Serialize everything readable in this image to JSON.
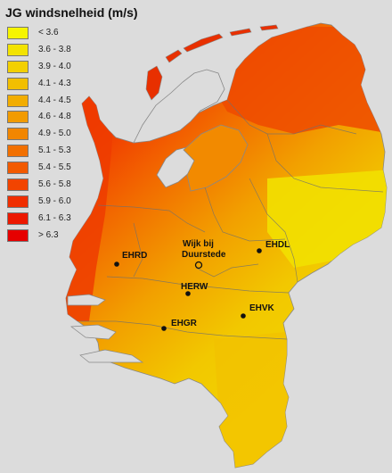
{
  "title": "JG windsnelheid (m/s)",
  "legend": [
    {
      "label": "< 3.6",
      "color": "#f6f500"
    },
    {
      "label": "3.6 - 3.8",
      "color": "#f3e300"
    },
    {
      "label": "3.9 - 4.0",
      "color": "#f3d000"
    },
    {
      "label": "4.1 - 4.3",
      "color": "#f2bf00"
    },
    {
      "label": "4.4 - 4.5",
      "color": "#f2ad00"
    },
    {
      "label": "4.6 - 4.8",
      "color": "#f29b00"
    },
    {
      "label": "4.9 - 5.0",
      "color": "#f28600"
    },
    {
      "label": "5.1 - 5.3",
      "color": "#f27000"
    },
    {
      "label": "5.4 - 5.5",
      "color": "#f25a00"
    },
    {
      "label": "5.6 - 5.8",
      "color": "#f24400"
    },
    {
      "label": "5.9 - 6.0",
      "color": "#f02e00"
    },
    {
      "label": "6.1 - 6.3",
      "color": "#ec1800"
    },
    {
      "label": "> 6.3",
      "color": "#e60000"
    }
  ],
  "stations": [
    {
      "name": "EHRD",
      "symbol": "dot"
    },
    {
      "name": "Wijk bij Duurstede",
      "symbol": "circle"
    },
    {
      "name": "EHDL",
      "symbol": "dot"
    },
    {
      "name": "HERW",
      "symbol": "dot"
    },
    {
      "name": "EHVK",
      "symbol": "dot"
    },
    {
      "name": "EHGR",
      "symbol": "dot"
    }
  ]
}
